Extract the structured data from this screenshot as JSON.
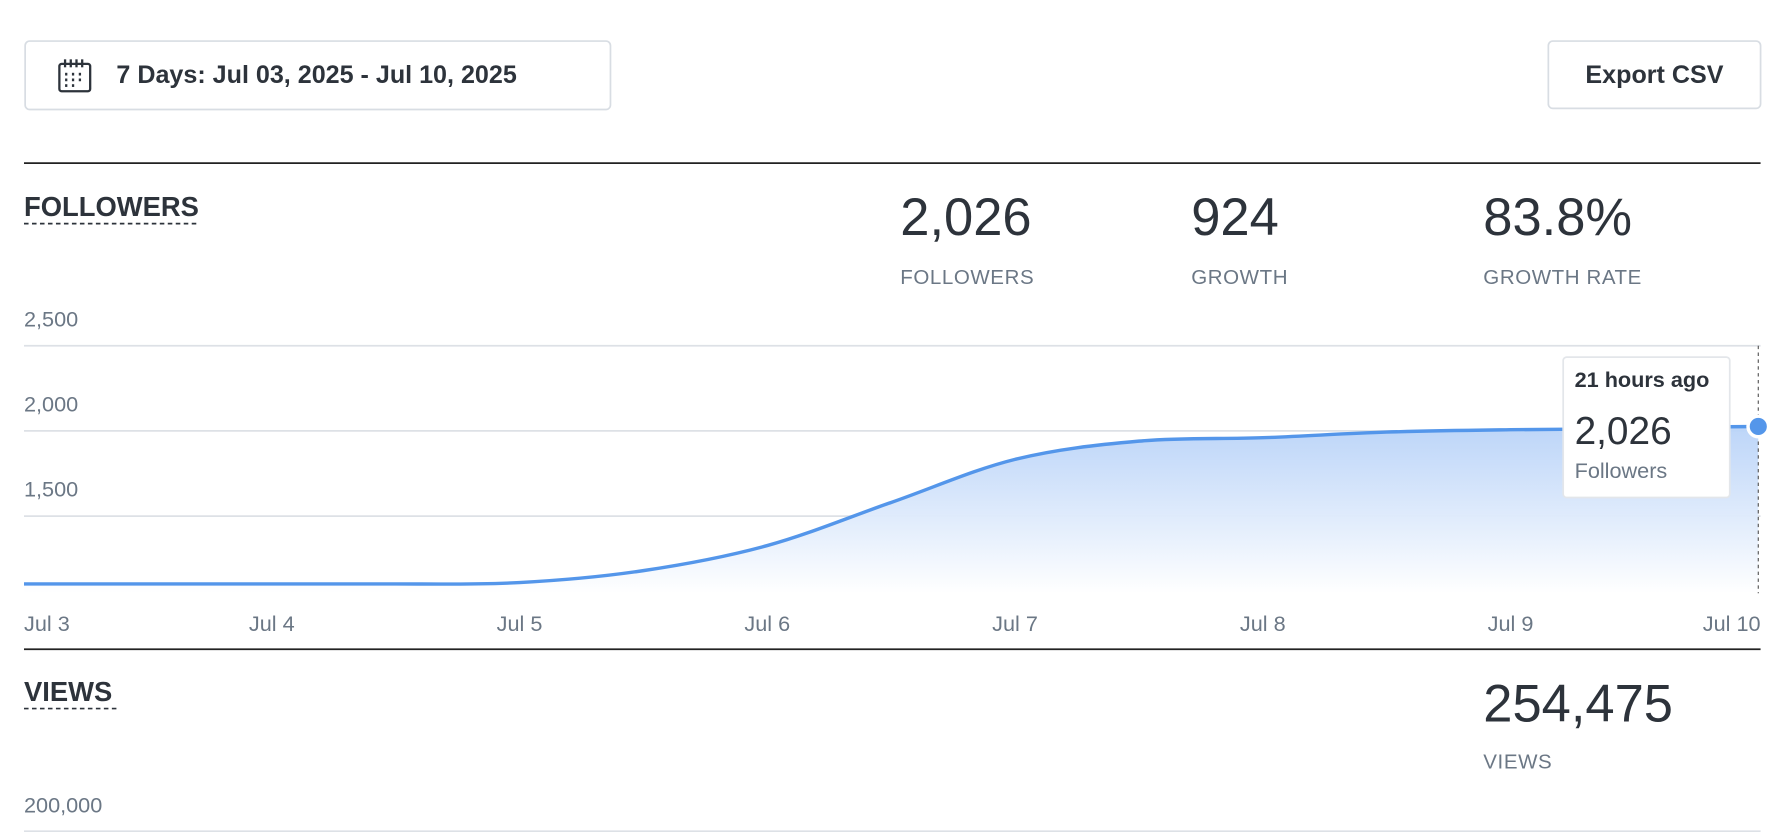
{
  "toolbar": {
    "date_range": "7 Days: Jul 03, 2025 - Jul 10, 2025",
    "export": "Export CSV"
  },
  "followers": {
    "title": "FOLLOWERS",
    "stats": [
      {
        "value": "2,026",
        "label": "FOLLOWERS"
      },
      {
        "value": "924",
        "label": "GROWTH"
      },
      {
        "value": "83.8%",
        "label": "GROWTH RATE"
      }
    ],
    "chart": {
      "type": "area",
      "categories": [
        "Jul 3",
        null,
        "Jul 4",
        null,
        "Jul 5",
        null,
        "Jul 6",
        null,
        "Jul 7",
        null,
        "Jul 8",
        null,
        "Jul 9",
        null,
        "Jul 10"
      ],
      "values": [
        1102,
        1102,
        1102,
        1102,
        1110,
        1180,
        1327,
        1580,
        1833,
        1940,
        1960,
        1993,
        2007,
        2013,
        2026
      ],
      "color": "#5496ea",
      "ylim": [
        1000,
        2500
      ],
      "yticks": [
        {
          "value": 1500,
          "label": "1,500"
        },
        {
          "value": 2000,
          "label": "2,000"
        },
        {
          "value": 2500,
          "label": "2,500"
        }
      ],
      "grid": true,
      "tooltip": {
        "title": "21 hours ago",
        "value": "2,026",
        "label": "Followers"
      }
    }
  },
  "views": {
    "title": "VIEWS",
    "stats": [
      {
        "value": "254,475",
        "label": "VIEWS"
      }
    ],
    "chart": {
      "yticks": [
        {
          "value": 200000,
          "label": "200,000"
        }
      ]
    }
  }
}
